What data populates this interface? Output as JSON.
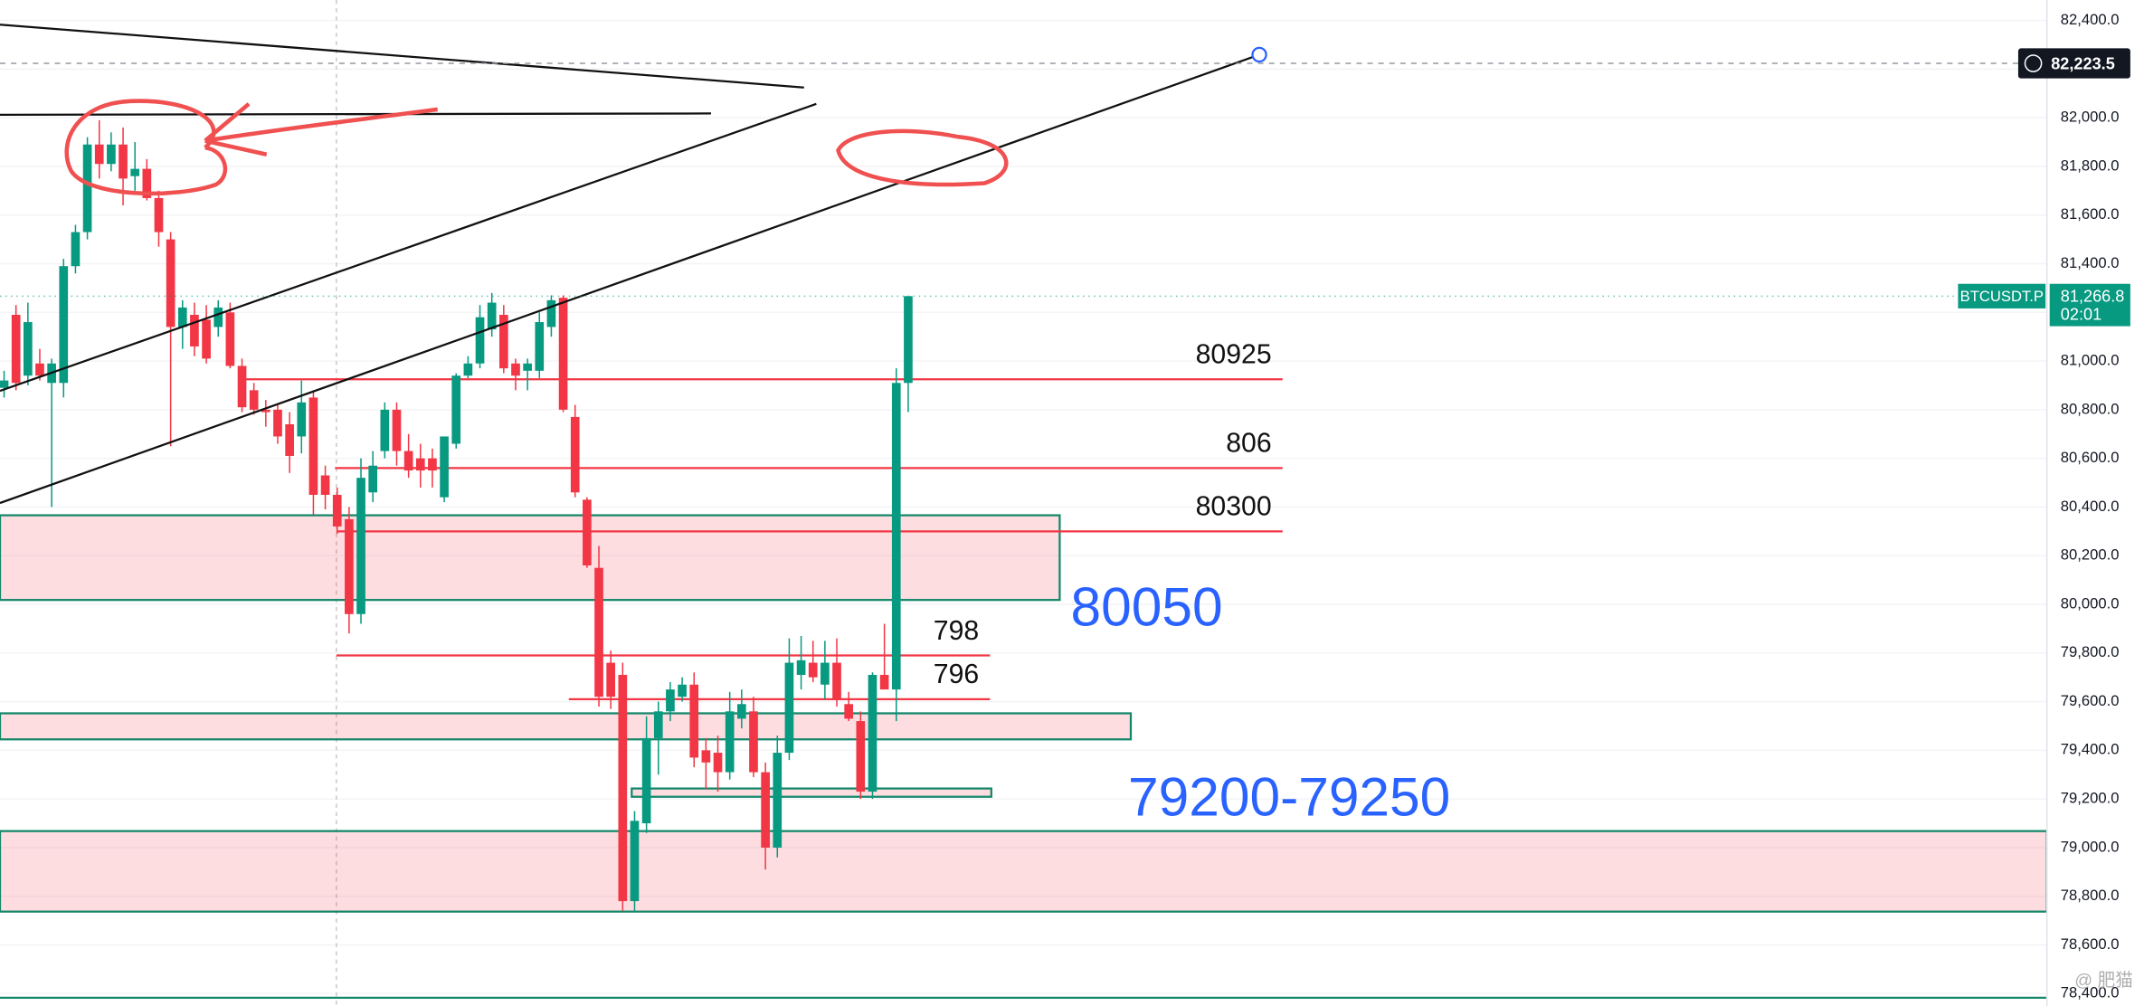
{
  "chart_data": {
    "type": "candlestick",
    "symbol": "BTCUSDT.P",
    "up_color": "#089981",
    "down_color": "#f23645",
    "ylim": [
      78349,
      82484
    ],
    "yticks": [
      {
        "value": 82400,
        "label": "82,400.0"
      },
      {
        "value": 82200,
        "label": "82,200.0"
      },
      {
        "value": 82000,
        "label": "82,000.0"
      },
      {
        "value": 81800,
        "label": "81,800.0"
      },
      {
        "value": 81600,
        "label": "81,600.0"
      },
      {
        "value": 81400,
        "label": "81,400.0"
      },
      {
        "value": 81200,
        "label": "81,200.0"
      },
      {
        "value": 81000,
        "label": "81,000.0"
      },
      {
        "value": 80800,
        "label": "80,800.0"
      },
      {
        "value": 80600,
        "label": "80,600.0"
      },
      {
        "value": 80400,
        "label": "80,400.0"
      },
      {
        "value": 80200,
        "label": "80,200.0"
      },
      {
        "value": 80000,
        "label": "80,000.0"
      },
      {
        "value": 79800,
        "label": "79,800.0"
      },
      {
        "value": 79600,
        "label": "79,600.0"
      },
      {
        "value": 79400,
        "label": "79,400.0"
      },
      {
        "value": 79200,
        "label": "79,200.0"
      },
      {
        "value": 79000,
        "label": "79,000.0"
      },
      {
        "value": 78800,
        "label": "78,800.0"
      },
      {
        "value": 78600,
        "label": "78,600.0"
      },
      {
        "value": 78400,
        "label": "78,400.0"
      }
    ],
    "candles": {
      "open": [
        80890,
        81190,
        80940,
        80990,
        80910,
        80910,
        81390,
        81530,
        81890,
        81810,
        81890,
        81760,
        81790,
        81670,
        81500,
        81140,
        81190,
        81170,
        81140,
        81200,
        80980,
        80880,
        80800,
        80800,
        80740,
        80690,
        80850,
        80530,
        80450,
        80350,
        79960,
        80460,
        80630,
        80800,
        80630,
        80600,
        80600,
        80440,
        80660,
        80940,
        80990,
        81130,
        81190,
        80990,
        80960,
        80960,
        81140,
        81260,
        80770,
        80430,
        80150,
        79760,
        79710,
        78780,
        79100,
        79450,
        79560,
        79620,
        79670,
        79400,
        79390,
        79310,
        79530,
        79560,
        79310,
        79000,
        79390,
        79710,
        79760,
        79670,
        79760,
        79590,
        79520,
        79230,
        79710,
        79650,
        80910
      ],
      "high": [
        80960,
        81230,
        81240,
        81050,
        81010,
        81420,
        81560,
        81920,
        81990,
        81940,
        81960,
        81900,
        81830,
        81700,
        81530,
        81250,
        81240,
        81230,
        81250,
        81240,
        81010,
        80910,
        80840,
        80820,
        80790,
        80920,
        80880,
        80570,
        80480,
        80400,
        80600,
        80630,
        80830,
        80830,
        80700,
        80660,
        80640,
        80690,
        80950,
        81020,
        81230,
        81280,
        81230,
        81010,
        81010,
        81200,
        81270,
        81270,
        80820,
        80440,
        80240,
        79810,
        79760,
        79150,
        79540,
        79600,
        79680,
        79700,
        79720,
        79450,
        79460,
        79640,
        79650,
        79620,
        79350,
        79460,
        79860,
        79870,
        79850,
        79850,
        79860,
        79640,
        79560,
        79720,
        79920,
        80970,
        81266.8
      ],
      "low": [
        80850,
        80880,
        80900,
        80920,
        80400,
        80850,
        81360,
        81500,
        81750,
        81780,
        81640,
        81700,
        81660,
        81470,
        80650,
        81050,
        81020,
        80990,
        81100,
        80970,
        80790,
        80780,
        80730,
        80660,
        80540,
        80620,
        80370,
        80390,
        80290,
        79880,
        79920,
        80420,
        80600,
        80570,
        80520,
        80480,
        80480,
        80420,
        80640,
        80930,
        80970,
        81100,
        80950,
        80880,
        80880,
        80930,
        81100,
        80790,
        80440,
        80150,
        79580,
        79570,
        78740,
        78740,
        79060,
        79300,
        79520,
        79600,
        79330,
        79240,
        79230,
        79280,
        79490,
        79290,
        78910,
        78960,
        79360,
        79650,
        79680,
        79610,
        79580,
        79520,
        79200,
        79200,
        79660,
        79520,
        80790
      ],
      "close": [
        80920,
        80910,
        81160,
        80940,
        80990,
        81390,
        81530,
        81890,
        81810,
        81890,
        81750,
        81790,
        81670,
        81530,
        81140,
        81220,
        81060,
        81010,
        81220,
        80980,
        80810,
        80800,
        80790,
        80690,
        80610,
        80830,
        80450,
        80450,
        80320,
        79960,
        80520,
        80570,
        80800,
        80630,
        80550,
        80550,
        80550,
        80690,
        80940,
        80990,
        81180,
        81240,
        80970,
        80940,
        80990,
        81160,
        81250,
        80800,
        80460,
        80160,
        79620,
        79620,
        78780,
        79110,
        79450,
        79560,
        79650,
        79670,
        79370,
        79350,
        79310,
        79560,
        79590,
        79310,
        79000,
        79390,
        79760,
        79770,
        79700,
        79760,
        79610,
        79530,
        79230,
        79710,
        79650,
        80910,
        81266.8
      ]
    },
    "crosshair_price": {
      "value": 82223.5,
      "label": "82,223.5"
    },
    "last_price": {
      "value": 81266.8,
      "label": "81,266.8"
    },
    "countdown": "02:01",
    "levels": [
      {
        "text": "80925",
        "price": 80925
      },
      {
        "text": "806",
        "price": 80560
      },
      {
        "text": "80300",
        "price": 80300
      },
      {
        "text": "798",
        "price": 79790
      },
      {
        "text": "796",
        "price": 79610
      }
    ],
    "zones": [
      {
        "low": 80018,
        "high": 80366
      },
      {
        "low": 79445,
        "high": 79552
      },
      {
        "low": 79209,
        "high": 79243
      },
      {
        "low": 78737,
        "high": 79068
      }
    ],
    "horizontal_lines": [
      78383
    ],
    "annotations": [
      "80050",
      "79200-79250"
    ],
    "watermark": "@ 肥猫"
  }
}
